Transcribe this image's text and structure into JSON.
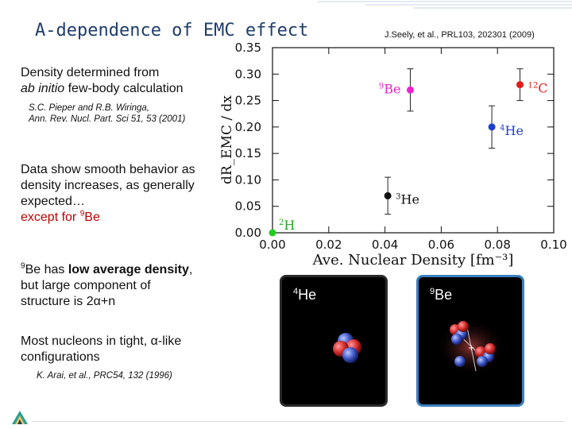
{
  "slide": {
    "title": "A-dependence of EMC effect",
    "citation": "J.Seely, et al., PRL103, 202301 (2009)",
    "density_line1": "Density determined from",
    "density_line2_italic": "ab initio",
    "density_line2_rest": " few-body calculation",
    "ref1_line1": "S.C. Pieper and R.B. Wiringa,",
    "ref1_line2": "Ann. Rev. Nucl. Part. Sci 51, 53 (2001)",
    "smooth_line1": "Data show smooth behavior  as",
    "smooth_line2": "density increases, as generally",
    "smooth_line3": "expected…",
    "except_prefix": "except for ",
    "except_sup": "9",
    "except_rest": "Be",
    "be_sup": "9",
    "be_text1": "Be has ",
    "be_bold": "low average density",
    "be_text2": ",",
    "be_line2": "but large component of",
    "be_line3_prefix": "structure is 2",
    "be_line3_alpha": "α",
    "be_line3_suffix": "+n",
    "nucleons_line1_prefix": "Most nucleons in tight, ",
    "nucleons_line1_alpha": "α",
    "nucleons_line1_suffix": "-like",
    "nucleons_line2": "configurations",
    "ref2": "K. Arai, et al., PRC54, 132 (1996)",
    "panel_he_sup": "4",
    "panel_he_label": "He",
    "panel_be_sup": "9",
    "panel_be_label": "Be"
  },
  "chart_data": {
    "type": "scatter",
    "xlabel": "Ave. Nuclear Density [fm⁻³]",
    "ylabel": "dR_EMC / dx",
    "xlim": [
      0.0,
      0.1
    ],
    "ylim": [
      0.0,
      0.35
    ],
    "xticks": [
      "0.00",
      "0.02",
      "0.04",
      "0.06",
      "0.08",
      "0.10"
    ],
    "yticks": [
      "0.00",
      "0.05",
      "0.10",
      "0.15",
      "0.20",
      "0.25",
      "0.30",
      "0.35"
    ],
    "points": [
      {
        "label_sup": "2",
        "label": "H",
        "x": 0.0,
        "y": 0.0,
        "err": 0.0,
        "color": "#22cc22",
        "label_side": "right-above"
      },
      {
        "label_sup": "3",
        "label": "He",
        "x": 0.041,
        "y": 0.07,
        "err": 0.035,
        "color": "#111111",
        "label_side": "right"
      },
      {
        "label_sup": "4",
        "label": "He",
        "x": 0.078,
        "y": 0.2,
        "err": 0.04,
        "color": "#1f3fcf",
        "label_side": "right"
      },
      {
        "label_sup": "9",
        "label": "Be",
        "x": 0.049,
        "y": 0.27,
        "err": 0.04,
        "color": "#ee22cc",
        "label_side": "left"
      },
      {
        "label_sup": "12",
        "label": "C",
        "x": 0.088,
        "y": 0.28,
        "err": 0.03,
        "color": "#e21b1b",
        "label_side": "right"
      }
    ]
  }
}
